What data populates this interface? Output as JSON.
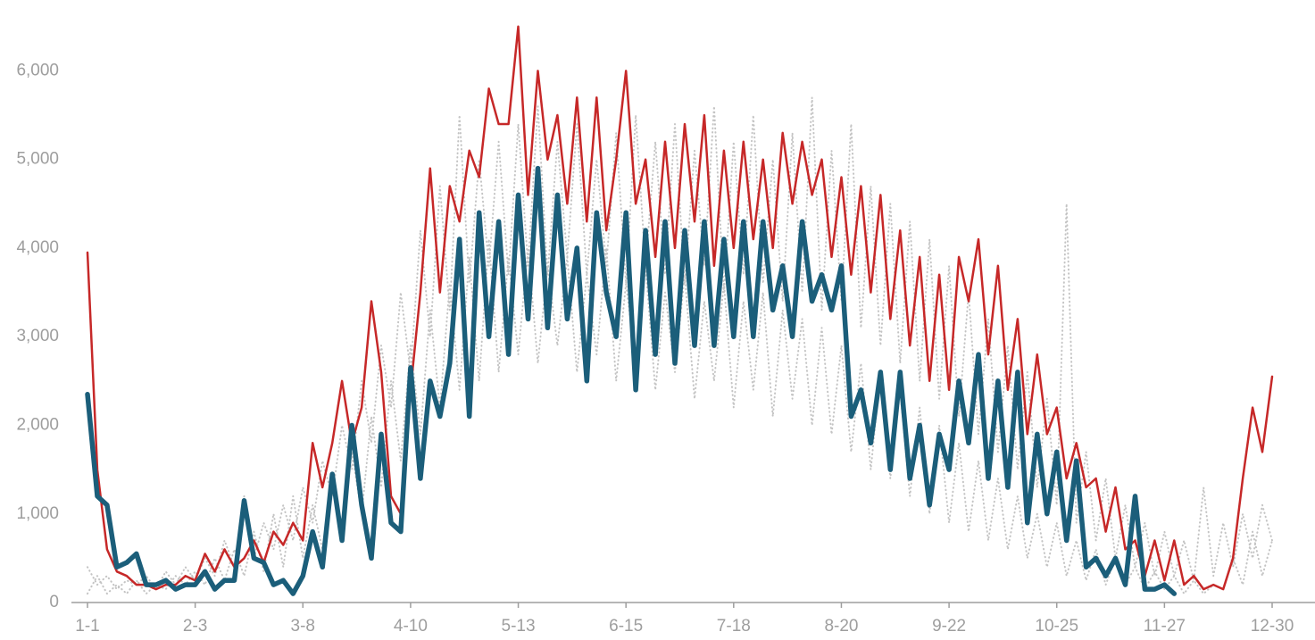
{
  "chart_data": {
    "type": "line",
    "categories": [
      "1-1",
      null,
      null,
      null,
      null,
      null,
      null,
      null,
      null,
      null,
      null,
      "2-3",
      null,
      null,
      null,
      null,
      null,
      null,
      null,
      null,
      null,
      null,
      "3-8",
      null,
      null,
      null,
      null,
      null,
      null,
      null,
      null,
      null,
      null,
      "4-10",
      null,
      null,
      null,
      null,
      null,
      null,
      null,
      null,
      null,
      null,
      "5-13",
      null,
      null,
      null,
      null,
      null,
      null,
      null,
      null,
      null,
      null,
      "6-15",
      null,
      null,
      null,
      null,
      null,
      null,
      null,
      null,
      null,
      null,
      "7-18",
      null,
      null,
      null,
      null,
      null,
      null,
      null,
      null,
      null,
      null,
      "8-20",
      null,
      null,
      null,
      null,
      null,
      null,
      null,
      null,
      null,
      null,
      "9-22",
      null,
      null,
      null,
      null,
      null,
      null,
      null,
      null,
      null,
      null,
      "10-25",
      null,
      null,
      null,
      null,
      null,
      null,
      null,
      null,
      null,
      null,
      "11-27",
      null,
      null,
      null,
      null,
      null,
      null,
      null,
      null,
      null,
      null,
      "12-30"
    ],
    "ylim": [
      0,
      6800
    ],
    "yticks": [
      0,
      {
        "value": 1000,
        "label": "1,000"
      },
      {
        "value": 2000,
        "label": "2,000"
      },
      {
        "value": 3000,
        "label": "3,000"
      },
      {
        "value": 4000,
        "label": "4,000"
      },
      {
        "value": 5000,
        "label": "5,000"
      },
      {
        "value": 6000,
        "label": "6,000"
      }
    ],
    "grid": false,
    "series": [
      {
        "color": "#c4c4c4",
        "style": "dotted",
        "values": [
          400,
          200,
          300,
          150,
          250,
          200,
          300,
          150,
          350,
          200,
          400,
          250,
          500,
          300,
          700,
          400,
          1200,
          500,
          900,
          600,
          1100,
          700,
          1300,
          900,
          1600,
          1200,
          2000,
          1500,
          2500,
          1800,
          2900,
          2200,
          3500,
          2600,
          4200,
          3000,
          4700,
          3300,
          5500,
          3600,
          5000,
          3800,
          5200,
          3700,
          5400,
          3800,
          5600,
          3700,
          5200,
          3900,
          5400,
          3700,
          5000,
          3800,
          5300,
          3600,
          5500,
          3800,
          5200,
          3700,
          5400,
          3600,
          5100,
          3800,
          5600,
          3500,
          5200,
          3700,
          5500,
          3600,
          5000,
          3400,
          5300,
          3500,
          5700,
          3300,
          5100,
          3400,
          5400,
          3100,
          4700,
          2900,
          4500,
          2700,
          4300,
          2500,
          4100,
          2300,
          3800,
          2100,
          3500,
          1900,
          3200,
          1700,
          2900,
          1500,
          2600,
          1300,
          2300,
          1100,
          4500,
          900,
          1700,
          700,
          1400,
          500,
          1100,
          400,
          900,
          300,
          800,
          300,
          700,
          250,
          1300,
          300,
          900,
          400,
          1000,
          500,
          1100,
          700
        ]
      },
      {
        "color": "#c4c4c4",
        "style": "dotted",
        "values": [
          100,
          300,
          100,
          200,
          100,
          250,
          100,
          200,
          150,
          300,
          200,
          350,
          200,
          500,
          250,
          600,
          300,
          800,
          350,
          1000,
          400,
          1200,
          500,
          1100,
          600,
          1400,
          800,
          1700,
          1000,
          2100,
          1300,
          2500,
          1600,
          2900,
          1900,
          3300,
          2200,
          3600,
          2400,
          3900,
          2500,
          4100,
          2600,
          3900,
          2800,
          4000,
          2700,
          3800,
          2900,
          3900,
          2600,
          3700,
          2800,
          4000,
          2500,
          3600,
          2700,
          3800,
          2400,
          3500,
          2600,
          3700,
          2300,
          3400,
          2500,
          3600,
          2200,
          3400,
          2400,
          3500,
          2100,
          3300,
          2300,
          3200,
          2000,
          3100,
          1900,
          2900,
          1700,
          2700,
          1500,
          2600,
          1400,
          2400,
          1200,
          2200,
          1000,
          2000,
          900,
          1800,
          800,
          1600,
          700,
          1400,
          600,
          1200,
          500,
          1000,
          400,
          900,
          300,
          700,
          250,
          600,
          200,
          500,
          200,
          400,
          150,
          350,
          150,
          300,
          100,
          250,
          100,
          200,
          150,
          500,
          200,
          800,
          300,
          700
        ]
      },
      {
        "color": "#c62828",
        "style": "solid",
        "values": [
          3950,
          1500,
          600,
          350,
          300,
          200,
          200,
          150,
          200,
          200,
          300,
          250,
          550,
          350,
          600,
          400,
          500,
          700,
          450,
          800,
          650,
          900,
          700,
          1800,
          1300,
          1800,
          2500,
          1800,
          2200,
          3400,
          2600,
          1200,
          1000,
          2400,
          3500,
          4900,
          3500,
          4700,
          4300,
          5100,
          4800,
          5800,
          5400,
          5400,
          6500,
          4600,
          6000,
          5000,
          5500,
          4500,
          5700,
          4300,
          5700,
          4200,
          5000,
          6000,
          4500,
          5000,
          3900,
          5200,
          4000,
          5400,
          4300,
          5500,
          3800,
          5100,
          4000,
          5200,
          4100,
          5000,
          4000,
          5300,
          4500,
          5200,
          4600,
          5000,
          3900,
          4800,
          3700,
          4700,
          3500,
          4600,
          3200,
          4200,
          2900,
          3900,
          2500,
          3700,
          2400,
          3900,
          3400,
          4100,
          2800,
          3800,
          2400,
          3200,
          1900,
          2800,
          1900,
          2200,
          1400,
          1800,
          1300,
          1400,
          800,
          1300,
          600,
          700,
          300,
          700,
          250,
          700,
          200,
          300,
          150,
          200,
          150,
          500,
          1400,
          2200,
          1700,
          2550
        ]
      },
      {
        "color": "#1b5e7a",
        "style": "solid",
        "values": [
          2350,
          1200,
          1100,
          400,
          450,
          550,
          200,
          200,
          250,
          150,
          200,
          200,
          350,
          150,
          250,
          250,
          1150,
          500,
          450,
          200,
          250,
          100,
          300,
          800,
          400,
          1450,
          700,
          2000,
          1100,
          500,
          1900,
          900,
          800,
          2650,
          1400,
          2500,
          2100,
          2700,
          4100,
          2100,
          4400,
          3000,
          4300,
          2800,
          4600,
          3200,
          4900,
          3100,
          4600,
          3200,
          4000,
          2500,
          4400,
          3500,
          3000,
          4400,
          2400,
          4200,
          2800,
          4300,
          2700,
          4200,
          2900,
          4300,
          2900,
          4100,
          3000,
          4300,
          3000,
          4300,
          3300,
          3800,
          3000,
          4300,
          3400,
          3700,
          3300,
          3800,
          2100,
          2400,
          1800,
          2600,
          1500,
          2600,
          1400,
          2000,
          1100,
          1900,
          1500,
          2500,
          1800,
          2800,
          1400,
          2500,
          1300,
          2600,
          900,
          1900,
          1000,
          1700,
          700,
          1600,
          400,
          500,
          300,
          500,
          200,
          1200,
          150,
          150,
          200,
          100,
          null,
          null,
          null,
          null,
          null,
          null,
          null,
          null,
          null,
          null
        ]
      }
    ]
  }
}
